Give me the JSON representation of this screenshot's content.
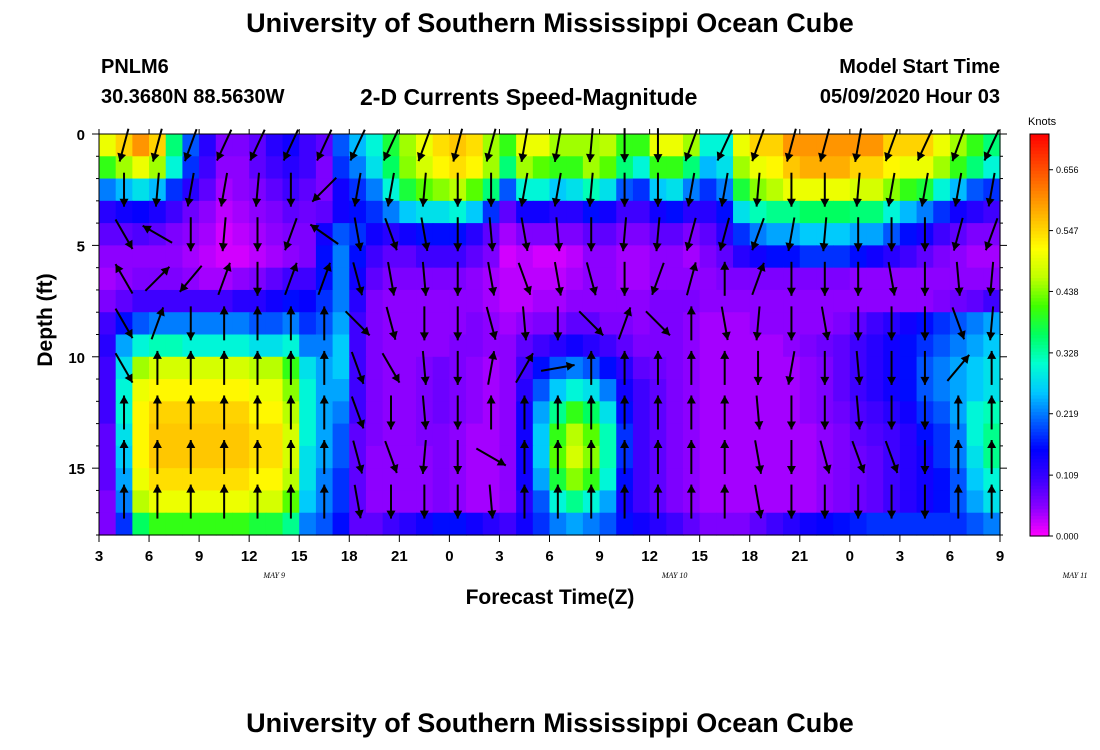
{
  "header": {
    "title": "University of Southern Mississippi Ocean Cube",
    "station_id": "PNLM6",
    "station_coords": "30.3680N 88.5630W",
    "product_title": "2-D Currents Speed-Magnitude",
    "start_label": "Model Start Time",
    "start_value": "05/09/2020 Hour 03"
  },
  "footer": {
    "title": "University of Southern Mississippi Ocean Cube"
  },
  "colors": {
    "scale": [
      "#ff00ff",
      "#8a00ff",
      "#3a00ff",
      "#0000ff",
      "#0060ff",
      "#00c8ff",
      "#00ffd0",
      "#00ff60",
      "#40ff00",
      "#c0ff00",
      "#ffff00",
      "#ffc000",
      "#ff8000",
      "#ff4000",
      "#ff0000"
    ],
    "arrow": "#000000"
  },
  "chart_data": {
    "type": "heatmap",
    "title": "2-D Currents Speed-Magnitude",
    "xlabel": "Forecast Time(Z)",
    "ylabel": "Depth (ft)",
    "x_tick_labels": [
      "3",
      "6",
      "9",
      "12",
      "15",
      "18",
      "21",
      "0",
      "3",
      "6",
      "9",
      "12",
      "15",
      "18",
      "21",
      "0",
      "3",
      "6",
      "9"
    ],
    "date_labels": [
      {
        "text": "MAY 9",
        "hour_offset": 10.5
      },
      {
        "text": "MAY 10",
        "hour_offset": 34.5
      },
      {
        "text": "MAY 11",
        "hour_offset": 58.5
      }
    ],
    "x_range_hours": [
      0,
      54
    ],
    "y_tick_labels": [
      "0",
      "5",
      "10",
      "15"
    ],
    "y_ticks": [
      0,
      5,
      10,
      15
    ],
    "ylim": [
      0,
      18
    ],
    "colorbar": {
      "label": "Knots",
      "ticks": [
        "0.656",
        "0.547",
        "0.438",
        "0.328",
        "0.219",
        "0.109",
        "0.000"
      ],
      "range": [
        0,
        0.72
      ]
    },
    "hours_per_column": 1,
    "row_depths_ft": [
      0.5,
      1.5,
      2.5,
      3.5,
      4.5,
      5.5,
      6.5,
      7.5,
      8.5,
      9.5,
      10.5,
      11.5,
      12.5,
      13.5,
      14.5,
      15.5,
      16.5,
      17.5
    ],
    "speed_knots": [
      [
        0.5,
        0.55,
        0.6,
        0.55,
        0.35,
        0.2,
        0.12,
        0.06,
        0.06,
        0.08,
        0.12,
        0.14,
        0.1,
        0.08,
        0.2,
        0.25,
        0.3,
        0.38,
        0.45,
        0.5,
        0.54,
        0.56,
        0.54,
        0.45,
        0.4,
        0.5,
        0.5,
        0.45,
        0.45,
        0.45,
        0.46,
        0.4,
        0.4,
        0.5,
        0.5,
        0.45,
        0.3,
        0.3,
        0.5,
        0.55,
        0.55,
        0.6,
        0.6,
        0.6,
        0.6,
        0.6,
        0.6,
        0.55,
        0.55,
        0.55,
        0.5,
        0.45,
        0.4,
        0.35
      ],
      [
        0.4,
        0.45,
        0.5,
        0.45,
        0.3,
        0.18,
        0.1,
        0.05,
        0.05,
        0.08,
        0.1,
        0.12,
        0.1,
        0.06,
        0.18,
        0.22,
        0.28,
        0.36,
        0.44,
        0.48,
        0.52,
        0.54,
        0.52,
        0.45,
        0.35,
        0.45,
        0.42,
        0.4,
        0.4,
        0.45,
        0.42,
        0.35,
        0.3,
        0.4,
        0.4,
        0.35,
        0.25,
        0.28,
        0.45,
        0.5,
        0.52,
        0.56,
        0.58,
        0.58,
        0.58,
        0.55,
        0.55,
        0.52,
        0.5,
        0.5,
        0.45,
        0.4,
        0.35,
        0.3
      ],
      [
        0.22,
        0.25,
        0.28,
        0.25,
        0.18,
        0.12,
        0.08,
        0.04,
        0.05,
        0.06,
        0.08,
        0.1,
        0.08,
        0.06,
        0.14,
        0.18,
        0.22,
        0.3,
        0.38,
        0.42,
        0.44,
        0.46,
        0.42,
        0.35,
        0.2,
        0.3,
        0.3,
        0.26,
        0.28,
        0.32,
        0.28,
        0.2,
        0.18,
        0.26,
        0.28,
        0.22,
        0.18,
        0.22,
        0.38,
        0.44,
        0.46,
        0.5,
        0.5,
        0.5,
        0.5,
        0.48,
        0.48,
        0.44,
        0.4,
        0.38,
        0.3,
        0.25,
        0.2,
        0.18
      ],
      [
        0.12,
        0.14,
        0.15,
        0.13,
        0.1,
        0.07,
        0.05,
        0.03,
        0.04,
        0.05,
        0.06,
        0.08,
        0.07,
        0.08,
        0.14,
        0.16,
        0.18,
        0.22,
        0.26,
        0.28,
        0.28,
        0.3,
        0.26,
        0.18,
        0.08,
        0.14,
        0.14,
        0.12,
        0.12,
        0.16,
        0.14,
        0.1,
        0.1,
        0.14,
        0.16,
        0.12,
        0.12,
        0.16,
        0.28,
        0.32,
        0.34,
        0.34,
        0.36,
        0.36,
        0.36,
        0.35,
        0.35,
        0.3,
        0.25,
        0.22,
        0.18,
        0.14,
        0.12,
        0.1
      ],
      [
        0.08,
        0.08,
        0.09,
        0.08,
        0.06,
        0.05,
        0.04,
        0.02,
        0.03,
        0.04,
        0.05,
        0.06,
        0.06,
        0.14,
        0.2,
        0.18,
        0.14,
        0.12,
        0.14,
        0.16,
        0.16,
        0.16,
        0.12,
        0.08,
        0.04,
        0.06,
        0.06,
        0.06,
        0.06,
        0.08,
        0.08,
        0.06,
        0.06,
        0.08,
        0.08,
        0.06,
        0.08,
        0.12,
        0.18,
        0.22,
        0.24,
        0.24,
        0.26,
        0.26,
        0.26,
        0.24,
        0.24,
        0.2,
        0.16,
        0.14,
        0.1,
        0.08,
        0.06,
        0.06
      ],
      [
        0.05,
        0.05,
        0.05,
        0.05,
        0.05,
        0.04,
        0.03,
        0.02,
        0.02,
        0.03,
        0.04,
        0.05,
        0.06,
        0.16,
        0.22,
        0.16,
        0.1,
        0.08,
        0.08,
        0.1,
        0.1,
        0.1,
        0.08,
        0.06,
        0.02,
        0.03,
        0.02,
        0.02,
        0.03,
        0.05,
        0.05,
        0.04,
        0.04,
        0.05,
        0.05,
        0.04,
        0.06,
        0.08,
        0.12,
        0.14,
        0.16,
        0.16,
        0.18,
        0.18,
        0.18,
        0.16,
        0.14,
        0.12,
        0.1,
        0.08,
        0.06,
        0.05,
        0.04,
        0.04
      ],
      [
        0.04,
        0.05,
        0.06,
        0.06,
        0.06,
        0.05,
        0.04,
        0.04,
        0.05,
        0.06,
        0.08,
        0.1,
        0.1,
        0.16,
        0.22,
        0.14,
        0.08,
        0.06,
        0.06,
        0.06,
        0.06,
        0.06,
        0.05,
        0.04,
        0.03,
        0.03,
        0.03,
        0.03,
        0.04,
        0.05,
        0.05,
        0.04,
        0.04,
        0.05,
        0.05,
        0.05,
        0.05,
        0.06,
        0.06,
        0.06,
        0.06,
        0.06,
        0.06,
        0.06,
        0.06,
        0.05,
        0.05,
        0.05,
        0.05,
        0.05,
        0.05,
        0.05,
        0.05,
        0.05
      ],
      [
        0.06,
        0.08,
        0.1,
        0.1,
        0.1,
        0.1,
        0.1,
        0.1,
        0.12,
        0.12,
        0.14,
        0.16,
        0.15,
        0.18,
        0.22,
        0.12,
        0.06,
        0.05,
        0.05,
        0.05,
        0.05,
        0.05,
        0.05,
        0.04,
        0.03,
        0.03,
        0.04,
        0.04,
        0.05,
        0.05,
        0.05,
        0.05,
        0.05,
        0.06,
        0.06,
        0.06,
        0.05,
        0.05,
        0.05,
        0.05,
        0.05,
        0.05,
        0.05,
        0.05,
        0.05,
        0.05,
        0.05,
        0.05,
        0.05,
        0.05,
        0.06,
        0.07,
        0.08,
        0.1
      ],
      [
        0.1,
        0.16,
        0.2,
        0.22,
        0.22,
        0.22,
        0.22,
        0.22,
        0.22,
        0.2,
        0.2,
        0.22,
        0.18,
        0.2,
        0.24,
        0.1,
        0.06,
        0.05,
        0.05,
        0.05,
        0.05,
        0.05,
        0.06,
        0.05,
        0.04,
        0.05,
        0.06,
        0.06,
        0.08,
        0.08,
        0.06,
        0.06,
        0.05,
        0.06,
        0.06,
        0.05,
        0.04,
        0.04,
        0.04,
        0.05,
        0.05,
        0.05,
        0.05,
        0.05,
        0.06,
        0.08,
        0.1,
        0.12,
        0.14,
        0.16,
        0.18,
        0.2,
        0.22,
        0.24
      ],
      [
        0.12,
        0.24,
        0.3,
        0.32,
        0.32,
        0.3,
        0.3,
        0.3,
        0.3,
        0.28,
        0.28,
        0.3,
        0.22,
        0.22,
        0.26,
        0.1,
        0.06,
        0.05,
        0.05,
        0.05,
        0.05,
        0.06,
        0.06,
        0.05,
        0.05,
        0.08,
        0.1,
        0.12,
        0.14,
        0.12,
        0.1,
        0.08,
        0.06,
        0.06,
        0.06,
        0.05,
        0.04,
        0.04,
        0.04,
        0.04,
        0.04,
        0.05,
        0.06,
        0.07,
        0.08,
        0.1,
        0.12,
        0.14,
        0.16,
        0.18,
        0.2,
        0.22,
        0.24,
        0.26
      ],
      [
        0.1,
        0.28,
        0.45,
        0.48,
        0.48,
        0.48,
        0.48,
        0.48,
        0.48,
        0.46,
        0.46,
        0.4,
        0.28,
        0.24,
        0.26,
        0.1,
        0.06,
        0.05,
        0.05,
        0.06,
        0.07,
        0.06,
        0.05,
        0.04,
        0.05,
        0.1,
        0.16,
        0.2,
        0.22,
        0.2,
        0.16,
        0.12,
        0.08,
        0.07,
        0.06,
        0.05,
        0.04,
        0.04,
        0.04,
        0.04,
        0.04,
        0.04,
        0.05,
        0.06,
        0.08,
        0.1,
        0.12,
        0.14,
        0.16,
        0.2,
        0.22,
        0.24,
        0.26,
        0.28
      ],
      [
        0.1,
        0.3,
        0.5,
        0.52,
        0.52,
        0.52,
        0.52,
        0.52,
        0.52,
        0.5,
        0.5,
        0.44,
        0.3,
        0.24,
        0.24,
        0.1,
        0.06,
        0.05,
        0.05,
        0.06,
        0.07,
        0.06,
        0.05,
        0.04,
        0.05,
        0.12,
        0.2,
        0.26,
        0.3,
        0.28,
        0.22,
        0.14,
        0.1,
        0.08,
        0.06,
        0.05,
        0.04,
        0.04,
        0.04,
        0.04,
        0.04,
        0.04,
        0.05,
        0.06,
        0.08,
        0.1,
        0.12,
        0.14,
        0.16,
        0.2,
        0.22,
        0.24,
        0.26,
        0.28
      ],
      [
        0.1,
        0.3,
        0.52,
        0.55,
        0.55,
        0.55,
        0.55,
        0.55,
        0.55,
        0.52,
        0.52,
        0.46,
        0.3,
        0.24,
        0.22,
        0.1,
        0.06,
        0.05,
        0.05,
        0.06,
        0.07,
        0.06,
        0.05,
        0.04,
        0.05,
        0.14,
        0.24,
        0.34,
        0.4,
        0.36,
        0.28,
        0.16,
        0.1,
        0.08,
        0.06,
        0.05,
        0.04,
        0.04,
        0.04,
        0.04,
        0.04,
        0.04,
        0.05,
        0.06,
        0.07,
        0.09,
        0.1,
        0.12,
        0.14,
        0.18,
        0.2,
        0.24,
        0.3,
        0.32
      ],
      [
        0.08,
        0.28,
        0.52,
        0.56,
        0.56,
        0.56,
        0.56,
        0.56,
        0.56,
        0.54,
        0.54,
        0.48,
        0.3,
        0.24,
        0.2,
        0.08,
        0.06,
        0.05,
        0.05,
        0.06,
        0.06,
        0.05,
        0.04,
        0.04,
        0.05,
        0.14,
        0.26,
        0.4,
        0.46,
        0.42,
        0.32,
        0.18,
        0.1,
        0.08,
        0.06,
        0.05,
        0.04,
        0.04,
        0.04,
        0.04,
        0.04,
        0.04,
        0.04,
        0.05,
        0.06,
        0.08,
        0.09,
        0.1,
        0.12,
        0.16,
        0.18,
        0.22,
        0.3,
        0.34
      ],
      [
        0.08,
        0.26,
        0.52,
        0.56,
        0.56,
        0.56,
        0.56,
        0.56,
        0.56,
        0.54,
        0.54,
        0.48,
        0.28,
        0.24,
        0.2,
        0.08,
        0.05,
        0.05,
        0.05,
        0.05,
        0.06,
        0.05,
        0.04,
        0.04,
        0.05,
        0.14,
        0.26,
        0.42,
        0.48,
        0.44,
        0.32,
        0.18,
        0.1,
        0.08,
        0.06,
        0.05,
        0.04,
        0.04,
        0.04,
        0.04,
        0.04,
        0.04,
        0.04,
        0.05,
        0.06,
        0.07,
        0.08,
        0.1,
        0.12,
        0.14,
        0.18,
        0.22,
        0.28,
        0.34
      ],
      [
        0.08,
        0.24,
        0.5,
        0.54,
        0.54,
        0.54,
        0.54,
        0.54,
        0.54,
        0.52,
        0.52,
        0.46,
        0.28,
        0.22,
        0.18,
        0.08,
        0.05,
        0.05,
        0.05,
        0.05,
        0.06,
        0.05,
        0.04,
        0.04,
        0.05,
        0.14,
        0.24,
        0.38,
        0.44,
        0.4,
        0.3,
        0.16,
        0.1,
        0.08,
        0.06,
        0.05,
        0.04,
        0.04,
        0.04,
        0.04,
        0.04,
        0.04,
        0.04,
        0.05,
        0.06,
        0.07,
        0.08,
        0.1,
        0.12,
        0.14,
        0.16,
        0.2,
        0.26,
        0.3
      ],
      [
        0.06,
        0.22,
        0.46,
        0.5,
        0.5,
        0.5,
        0.5,
        0.5,
        0.5,
        0.48,
        0.48,
        0.42,
        0.26,
        0.22,
        0.18,
        0.08,
        0.05,
        0.05,
        0.05,
        0.05,
        0.06,
        0.05,
        0.04,
        0.04,
        0.05,
        0.12,
        0.2,
        0.3,
        0.34,
        0.3,
        0.24,
        0.14,
        0.1,
        0.08,
        0.06,
        0.05,
        0.04,
        0.04,
        0.04,
        0.04,
        0.04,
        0.04,
        0.04,
        0.05,
        0.06,
        0.07,
        0.08,
        0.1,
        0.12,
        0.14,
        0.16,
        0.2,
        0.24,
        0.28
      ],
      [
        0.06,
        0.18,
        0.36,
        0.4,
        0.4,
        0.4,
        0.4,
        0.4,
        0.4,
        0.38,
        0.38,
        0.34,
        0.22,
        0.2,
        0.16,
        0.08,
        0.08,
        0.1,
        0.12,
        0.14,
        0.16,
        0.16,
        0.14,
        0.12,
        0.1,
        0.14,
        0.18,
        0.22,
        0.24,
        0.22,
        0.2,
        0.16,
        0.14,
        0.12,
        0.1,
        0.08,
        0.06,
        0.06,
        0.06,
        0.08,
        0.1,
        0.12,
        0.14,
        0.15,
        0.16,
        0.17,
        0.18,
        0.18,
        0.18,
        0.18,
        0.18,
        0.18,
        0.2,
        0.22
      ]
    ],
    "arrow_columns_hours": [
      1.5,
      3.5,
      5.5,
      7.5,
      9.5,
      11.5,
      13.5,
      15.5,
      17.5,
      19.5,
      21.5,
      23.5,
      25.5,
      27.5,
      29.5,
      31.5,
      33.5,
      35.5,
      37.5,
      39.5,
      41.5,
      43.5,
      45.5,
      47.5,
      49.5,
      51.5,
      53.5
    ],
    "arrow_rows_ft": [
      0.5,
      2.5,
      4.5,
      6.5,
      8.5,
      10.5,
      12.5,
      14.5,
      16.5
    ],
    "arrow_dir_deg": [
      [
        195,
        195,
        200,
        205,
        205,
        205,
        205,
        205,
        205,
        200,
        195,
        195,
        190,
        190,
        185,
        180,
        180,
        200,
        205,
        200,
        195,
        195,
        190,
        200,
        205,
        200,
        205
      ],
      [
        180,
        185,
        190,
        190,
        185,
        180,
        225,
        190,
        190,
        185,
        180,
        180,
        190,
        190,
        185,
        180,
        180,
        190,
        190,
        185,
        180,
        180,
        185,
        190,
        190,
        190,
        190
      ],
      [
        150,
        300,
        180,
        185,
        180,
        200,
        305,
        170,
        160,
        170,
        180,
        175,
        170,
        175,
        180,
        185,
        185,
        195,
        195,
        200,
        190,
        185,
        180,
        180,
        180,
        195,
        200
      ],
      [
        330,
        45,
        220,
        20,
        180,
        20,
        20,
        165,
        170,
        175,
        180,
        170,
        160,
        170,
        165,
        180,
        200,
        15,
        0,
        20,
        180,
        180,
        180,
        170,
        180,
        175,
        185
      ],
      [
        150,
        20,
        180,
        0,
        0,
        0,
        0,
        135,
        165,
        180,
        180,
        165,
        175,
        180,
        135,
        20,
        135,
        0,
        170,
        185,
        180,
        170,
        180,
        180,
        180,
        160,
        185
      ],
      [
        150,
        0,
        0,
        0,
        0,
        0,
        0,
        160,
        150,
        175,
        180,
        10,
        30,
        80,
        0,
        0,
        0,
        0,
        0,
        180,
        190,
        180,
        175,
        180,
        180,
        40,
        0
      ],
      [
        0,
        0,
        0,
        0,
        0,
        0,
        0,
        160,
        180,
        175,
        180,
        0,
        0,
        0,
        0,
        0,
        0,
        0,
        0,
        175,
        180,
        180,
        175,
        180,
        180,
        0,
        0
      ],
      [
        0,
        0,
        0,
        0,
        0,
        0,
        0,
        165,
        160,
        185,
        180,
        120,
        0,
        0,
        0,
        0,
        0,
        0,
        0,
        170,
        180,
        165,
        160,
        160,
        180,
        0,
        0
      ],
      [
        0,
        0,
        0,
        0,
        0,
        0,
        0,
        170,
        180,
        180,
        180,
        175,
        0,
        0,
        0,
        0,
        0,
        0,
        0,
        170,
        180,
        180,
        180,
        180,
        180,
        0,
        0
      ]
    ]
  },
  "labels": {
    "x_axis_title": "Forecast Time(Z)",
    "y_axis_title": "Depth (ft)",
    "colorbar_title": "Knots"
  }
}
